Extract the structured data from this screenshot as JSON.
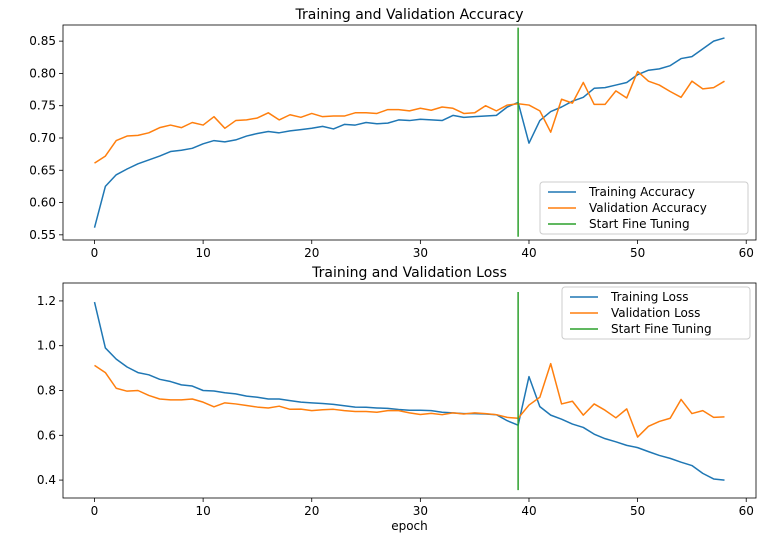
{
  "chart_data": [
    {
      "type": "line",
      "title": "Training and Validation Accuracy",
      "xlabel": "",
      "ylabel": "",
      "xlim": [
        -2.9,
        60.9
      ],
      "ylim": [
        0.542,
        0.875
      ],
      "xticks": [
        0,
        10,
        20,
        30,
        40,
        50,
        60
      ],
      "yticks": [
        0.55,
        0.6,
        0.65,
        0.7,
        0.75,
        0.8,
        0.85
      ],
      "ytick_decimals": 2,
      "legend_position": "lower-right",
      "series": [
        {
          "name": "Training Accuracy",
          "color": "#1f77b4",
          "x": [
            0,
            1,
            2,
            3,
            4,
            5,
            6,
            7,
            8,
            9,
            10,
            11,
            12,
            13,
            14,
            15,
            16,
            17,
            18,
            19,
            20,
            21,
            22,
            23,
            24,
            25,
            26,
            27,
            28,
            29,
            30,
            31,
            32,
            33,
            34,
            35,
            36,
            37,
            38,
            39,
            40,
            41,
            42,
            43,
            44,
            45,
            46,
            47,
            48,
            49,
            50,
            51,
            52,
            53,
            54,
            55,
            56,
            57,
            58
          ],
          "y": [
            0.561,
            0.625,
            0.643,
            0.652,
            0.66,
            0.666,
            0.672,
            0.679,
            0.681,
            0.684,
            0.691,
            0.696,
            0.694,
            0.697,
            0.703,
            0.707,
            0.71,
            0.708,
            0.711,
            0.713,
            0.715,
            0.718,
            0.714,
            0.721,
            0.72,
            0.724,
            0.722,
            0.723,
            0.728,
            0.727,
            0.729,
            0.728,
            0.727,
            0.735,
            0.732,
            0.733,
            0.734,
            0.735,
            0.748,
            0.755,
            0.692,
            0.727,
            0.741,
            0.748,
            0.757,
            0.763,
            0.777,
            0.778,
            0.782,
            0.786,
            0.798,
            0.805,
            0.807,
            0.812,
            0.823,
            0.826,
            0.838,
            0.85,
            0.855
          ]
        },
        {
          "name": "Validation Accuracy",
          "color": "#ff7f0e",
          "x": [
            0,
            1,
            2,
            3,
            4,
            5,
            6,
            7,
            8,
            9,
            10,
            11,
            12,
            13,
            14,
            15,
            16,
            17,
            18,
            19,
            20,
            21,
            22,
            23,
            24,
            25,
            26,
            27,
            28,
            29,
            30,
            31,
            32,
            33,
            34,
            35,
            36,
            37,
            38,
            39,
            40,
            41,
            42,
            43,
            44,
            45,
            46,
            47,
            48,
            49,
            50,
            51,
            52,
            53,
            54,
            55,
            56,
            57,
            58
          ],
          "y": [
            0.661,
            0.672,
            0.696,
            0.703,
            0.704,
            0.708,
            0.716,
            0.72,
            0.716,
            0.724,
            0.72,
            0.733,
            0.715,
            0.727,
            0.728,
            0.731,
            0.739,
            0.728,
            0.736,
            0.732,
            0.738,
            0.733,
            0.734,
            0.734,
            0.739,
            0.739,
            0.738,
            0.744,
            0.744,
            0.742,
            0.746,
            0.743,
            0.748,
            0.746,
            0.738,
            0.739,
            0.75,
            0.742,
            0.751,
            0.753,
            0.751,
            0.742,
            0.709,
            0.76,
            0.754,
            0.786,
            0.752,
            0.752,
            0.773,
            0.762,
            0.803,
            0.788,
            0.782,
            0.772,
            0.763,
            0.788,
            0.776,
            0.778,
            0.788
          ]
        },
        {
          "name": "Start Fine Tuning",
          "color": "#2ca02c",
          "x": [
            39,
            39
          ],
          "y": [
            0.547,
            0.871
          ]
        }
      ]
    },
    {
      "type": "line",
      "title": "Training and Validation Loss",
      "xlabel": "epoch",
      "ylabel": "",
      "xlim": [
        -2.9,
        60.9
      ],
      "ylim": [
        0.32,
        1.28
      ],
      "xticks": [
        0,
        10,
        20,
        30,
        40,
        50,
        60
      ],
      "yticks": [
        0.4,
        0.6,
        0.8,
        1.0,
        1.2
      ],
      "ytick_decimals": 1,
      "legend_position": "upper-right",
      "series": [
        {
          "name": "Training Loss",
          "color": "#1f77b4",
          "x": [
            0,
            1,
            2,
            3,
            4,
            5,
            6,
            7,
            8,
            9,
            10,
            11,
            12,
            13,
            14,
            15,
            16,
            17,
            18,
            19,
            20,
            21,
            22,
            23,
            24,
            25,
            26,
            27,
            28,
            29,
            30,
            31,
            32,
            33,
            34,
            35,
            36,
            37,
            38,
            39,
            40,
            41,
            42,
            43,
            44,
            45,
            46,
            47,
            48,
            49,
            50,
            51,
            52,
            53,
            54,
            55,
            56,
            57,
            58
          ],
          "y": [
            1.195,
            0.99,
            0.94,
            0.905,
            0.88,
            0.87,
            0.85,
            0.84,
            0.825,
            0.82,
            0.8,
            0.798,
            0.79,
            0.785,
            0.775,
            0.77,
            0.762,
            0.762,
            0.755,
            0.748,
            0.745,
            0.742,
            0.738,
            0.732,
            0.726,
            0.725,
            0.722,
            0.72,
            0.715,
            0.712,
            0.712,
            0.71,
            0.703,
            0.7,
            0.697,
            0.697,
            0.695,
            0.692,
            0.665,
            0.645,
            0.862,
            0.728,
            0.69,
            0.672,
            0.65,
            0.635,
            0.605,
            0.585,
            0.571,
            0.555,
            0.545,
            0.527,
            0.51,
            0.497,
            0.48,
            0.465,
            0.43,
            0.405,
            0.4
          ]
        },
        {
          "name": "Validation Loss",
          "color": "#ff7f0e",
          "x": [
            0,
            1,
            2,
            3,
            4,
            5,
            6,
            7,
            8,
            9,
            10,
            11,
            12,
            13,
            14,
            15,
            16,
            17,
            18,
            19,
            20,
            21,
            22,
            23,
            24,
            25,
            26,
            27,
            28,
            29,
            30,
            31,
            32,
            33,
            34,
            35,
            36,
            37,
            38,
            39,
            40,
            41,
            42,
            43,
            44,
            45,
            46,
            47,
            48,
            49,
            50,
            51,
            52,
            53,
            54,
            55,
            56,
            57,
            58
          ],
          "y": [
            0.912,
            0.88,
            0.81,
            0.797,
            0.8,
            0.778,
            0.762,
            0.758,
            0.758,
            0.762,
            0.748,
            0.727,
            0.745,
            0.74,
            0.733,
            0.726,
            0.722,
            0.73,
            0.716,
            0.717,
            0.71,
            0.714,
            0.716,
            0.71,
            0.706,
            0.706,
            0.703,
            0.71,
            0.71,
            0.7,
            0.693,
            0.698,
            0.692,
            0.7,
            0.695,
            0.7,
            0.697,
            0.692,
            0.68,
            0.676,
            0.735,
            0.77,
            0.92,
            0.74,
            0.752,
            0.69,
            0.74,
            0.712,
            0.678,
            0.718,
            0.592,
            0.64,
            0.662,
            0.676,
            0.76,
            0.697,
            0.71,
            0.68,
            0.682
          ]
        },
        {
          "name": "Start Fine Tuning",
          "color": "#2ca02c",
          "x": [
            39,
            39
          ],
          "y": [
            0.355,
            1.24
          ]
        }
      ]
    }
  ]
}
